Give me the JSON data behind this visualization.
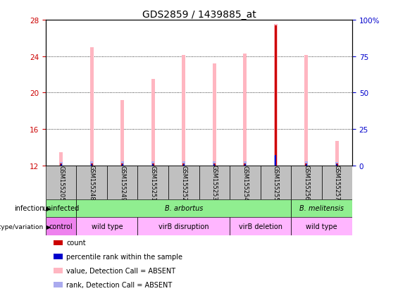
{
  "title": "GDS2859 / 1439885_at",
  "samples": [
    "GSM155205",
    "GSM155248",
    "GSM155249",
    "GSM155251",
    "GSM155252",
    "GSM155253",
    "GSM155254",
    "GSM155255",
    "GSM155256",
    "GSM155257"
  ],
  "value_bars": [
    13.5,
    25.0,
    19.2,
    21.5,
    24.1,
    23.2,
    24.3,
    27.5,
    24.1,
    14.7
  ],
  "rank_bars": [
    12.35,
    12.5,
    12.45,
    12.5,
    12.5,
    12.5,
    12.5,
    13.1,
    12.45,
    12.35
  ],
  "count_bars": [
    12.25,
    12.25,
    12.25,
    12.25,
    12.25,
    12.25,
    12.25,
    27.4,
    12.25,
    12.25
  ],
  "percentile_bars": [
    12.18,
    12.18,
    12.18,
    12.18,
    12.18,
    12.18,
    12.18,
    13.15,
    12.18,
    12.18
  ],
  "ylim": [
    12,
    28
  ],
  "yticks_left": [
    12,
    16,
    20,
    24,
    28
  ],
  "yticks_right_vals": [
    0,
    25,
    50,
    75,
    100
  ],
  "yticks_right_labels": [
    "0",
    "25",
    "50",
    "75",
    "100%"
  ],
  "infection_groups": [
    {
      "label": "uninfected",
      "start": 0,
      "end": 1,
      "color": "#90EE90",
      "italic": false
    },
    {
      "label": "B. arbortus",
      "start": 1,
      "end": 8,
      "color": "#90EE90",
      "italic": true
    },
    {
      "label": "B. melitensis",
      "start": 8,
      "end": 10,
      "color": "#90EE90",
      "italic": true
    }
  ],
  "genotype_groups": [
    {
      "label": "control",
      "start": 0,
      "end": 1,
      "color": "#EE82EE"
    },
    {
      "label": "wild type",
      "start": 1,
      "end": 3,
      "color": "#FFB6FF"
    },
    {
      "label": "virB disruption",
      "start": 3,
      "end": 6,
      "color": "#FFB6FF"
    },
    {
      "label": "virB deletion",
      "start": 6,
      "end": 8,
      "color": "#FFB6FF"
    },
    {
      "label": "wild type",
      "start": 8,
      "end": 10,
      "color": "#FFB6FF"
    }
  ],
  "value_color": "#FFB6C1",
  "rank_color": "#AAAAEE",
  "count_color": "#CC0000",
  "percentile_color": "#0000CC",
  "left_tick_color": "#CC0000",
  "right_tick_color": "#0000CC",
  "sample_box_color": "#C0C0C0",
  "ybase": 12,
  "legend_items": [
    {
      "color": "#CC0000",
      "label": "count"
    },
    {
      "color": "#0000CC",
      "label": "percentile rank within the sample"
    },
    {
      "color": "#FFB6C1",
      "label": "value, Detection Call = ABSENT"
    },
    {
      "color": "#AAAAEE",
      "label": "rank, Detection Call = ABSENT"
    }
  ]
}
